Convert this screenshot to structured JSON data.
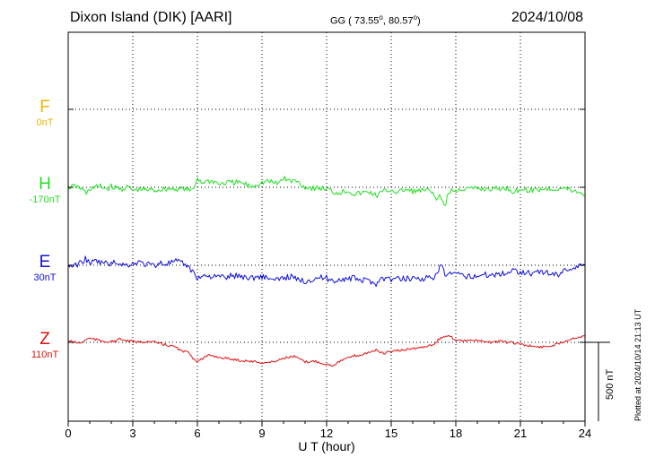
{
  "header": {
    "station": "Dixon Island (DIK)  [AARI]",
    "coords": "GG ( 73.55",
    "coords_deg": "o",
    "coords_mid": ",  80.57",
    "coords_deg2": "o",
    "coords_end": ")",
    "date": "2024/10/08"
  },
  "footer": {
    "plotted": "Plotted at 2024/10/14 21:13 UT",
    "scale": "500 nT"
  },
  "chart_data": {
    "type": "line",
    "xlabel": "U T (hour)",
    "xlim": [
      0,
      24
    ],
    "xticks": [
      "0",
      "3",
      "6",
      "9",
      "12",
      "15",
      "18",
      "21",
      "24"
    ],
    "grid": true,
    "colors": {
      "F": "#f0b400",
      "H": "#22e022",
      "E": "#1010dd",
      "Z": "#e01010"
    },
    "channels": [
      {
        "name": "F",
        "baseline": "0nT",
        "values": []
      },
      {
        "name": "H",
        "baseline": "-170nT",
        "x": [
          0,
          0.3,
          0.5,
          0.7,
          0.85,
          1.0,
          1.2,
          1.5,
          1.8,
          2.0,
          2.2,
          2.5,
          2.8,
          3.0,
          3.3,
          3.6,
          4.0,
          4.5,
          5.0,
          5.4,
          5.7,
          5.85,
          6.0,
          6.2,
          6.5,
          6.8,
          7.0,
          7.5,
          8.0,
          8.5,
          9.0,
          9.3,
          9.7,
          10.0,
          10.3,
          10.6,
          11.0,
          11.5,
          12.0,
          12.4,
          12.7,
          13.0,
          13.3,
          13.7,
          14.0,
          14.3,
          14.6,
          15.0,
          15.3,
          15.6,
          16.0,
          16.3,
          16.7,
          17.0,
          17.1,
          17.2,
          17.3,
          17.4,
          17.5,
          17.6,
          17.8,
          18.0,
          18.2,
          18.5,
          19.0,
          19.5,
          20.0,
          20.4,
          20.7,
          21.0,
          21.5,
          22.0,
          22.5,
          23.0,
          23.5,
          23.8,
          24.0
        ],
        "values": [
          -190,
          -185,
          -190,
          -210,
          -230,
          -200,
          -190,
          -185,
          -200,
          -185,
          -195,
          -200,
          -190,
          -210,
          -205,
          -205,
          -210,
          -200,
          -200,
          -200,
          -215,
          -190,
          -130,
          -160,
          -150,
          -155,
          -170,
          -160,
          -160,
          -185,
          -160,
          -150,
          -170,
          -130,
          -150,
          -150,
          -190,
          -195,
          -200,
          -225,
          -220,
          -210,
          -235,
          -225,
          -220,
          -245,
          -220,
          -205,
          -225,
          -205,
          -215,
          -215,
          -210,
          -230,
          -285,
          -240,
          -265,
          -280,
          -310,
          -250,
          -205,
          -225,
          -200,
          -200,
          -200,
          -200,
          -200,
          -195,
          -220,
          -200,
          -210,
          -200,
          -200,
          -195,
          -215,
          -225,
          -240
        ]
      },
      {
        "name": "E",
        "baseline": "30nT",
        "x": [
          0,
          0.3,
          0.6,
          0.8,
          1.0,
          1.3,
          1.6,
          2.0,
          2.3,
          2.6,
          3.0,
          3.3,
          3.6,
          4.0,
          4.3,
          4.6,
          5.0,
          5.3,
          5.5,
          5.7,
          5.9,
          6.0,
          6.2,
          6.5,
          6.8,
          7.0,
          7.3,
          7.6,
          8.0,
          8.5,
          9.0,
          9.3,
          9.6,
          10.0,
          10.3,
          10.6,
          11.0,
          11.5,
          12.0,
          12.3,
          12.7,
          13.0,
          13.3,
          13.6,
          14.0,
          14.3,
          14.6,
          15.0,
          15.5,
          16.0,
          16.5,
          16.9,
          17.0,
          17.2,
          17.3,
          17.5,
          17.8,
          18.0,
          18.5,
          19.0,
          19.5,
          20.0,
          20.3,
          20.7,
          21.0,
          21.5,
          22.0,
          22.3,
          22.7,
          23.0,
          23.3,
          23.6,
          24.0
        ],
        "values": [
          60,
          55,
          80,
          100,
          75,
          85,
          75,
          70,
          80,
          60,
          70,
          80,
          65,
          60,
          75,
          70,
          85,
          70,
          60,
          30,
          0,
          -20,
          -10,
          -5,
          -15,
          -10,
          -20,
          -5,
          -10,
          -20,
          -10,
          -20,
          -40,
          -20,
          -10,
          -30,
          -40,
          -20,
          -20,
          -40,
          -25,
          -30,
          -20,
          -35,
          -40,
          -55,
          -20,
          -30,
          -25,
          -20,
          -25,
          -15,
          -20,
          10,
          70,
          -5,
          10,
          0,
          -10,
          -5,
          0,
          5,
          10,
          30,
          20,
          10,
          20,
          10,
          0,
          25,
          40,
          50,
          60
        ]
      },
      {
        "name": "Z",
        "baseline": "110nT",
        "x": [
          0,
          0.3,
          0.6,
          0.9,
          1.2,
          1.5,
          1.8,
          2.1,
          2.4,
          2.7,
          3.0,
          3.3,
          3.6,
          4.0,
          4.5,
          5.0,
          5.3,
          5.6,
          5.8,
          6.0,
          6.3,
          6.6,
          7.0,
          7.5,
          8.0,
          8.5,
          9.0,
          9.5,
          10.0,
          10.5,
          11.0,
          11.5,
          12.0,
          12.3,
          12.6,
          13.0,
          13.3,
          13.6,
          14.0,
          14.3,
          14.6,
          15.0,
          15.5,
          16.0,
          16.5,
          17.0,
          17.3,
          17.6,
          17.8,
          18.0,
          18.3,
          18.6,
          19.0,
          19.5,
          20.0,
          20.5,
          21.0,
          21.5,
          22.0,
          22.5,
          23.0,
          23.5,
          24.0
        ],
        "values": [
          150,
          140,
          135,
          165,
          160,
          150,
          145,
          145,
          160,
          150,
          145,
          140,
          145,
          140,
          125,
          110,
          80,
          80,
          40,
          20,
          40,
          60,
          45,
          35,
          25,
          20,
          10,
          15,
          40,
          50,
          15,
          20,
          0,
          -5,
          20,
          40,
          55,
          60,
          80,
          90,
          70,
          80,
          90,
          100,
          110,
          130,
          170,
          180,
          170,
          160,
          150,
          155,
          150,
          140,
          145,
          140,
          130,
          115,
          110,
          120,
          145,
          170,
          180
        ]
      }
    ]
  }
}
